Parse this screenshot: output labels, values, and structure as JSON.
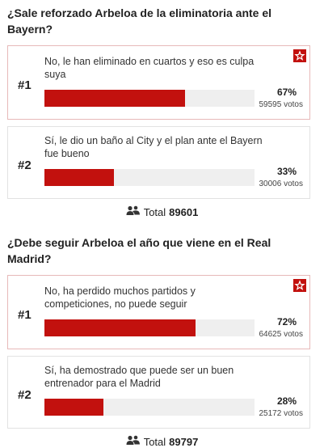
{
  "polls": [
    {
      "question": "¿Sale reforzado Arbeloa de la eliminatoria ante el Bayern?",
      "options": [
        {
          "rank": "#1",
          "text": "No, le han eliminado en cuartos y eso es culpa suya",
          "percent": 67,
          "percent_label": "67%",
          "votes": "59595 votos"
        },
        {
          "rank": "#2",
          "text": "Sí, le dio un baño al City y el plan ante el Bayern fue bueno",
          "percent": 33,
          "percent_label": "33%",
          "votes": "30006 votos"
        }
      ],
      "total_label": "Total",
      "total": 89601
    },
    {
      "question": "¿Debe seguir Arbeloa el año que viene en el Real Madrid?",
      "options": [
        {
          "rank": "#1",
          "text": "No, ha perdido muchos partidos y competiciones, no puede seguir",
          "percent": 72,
          "percent_label": "72%",
          "votes": "64625 votos"
        },
        {
          "rank": "#2",
          "text": "Sí, ha demostrado que puede ser un buen entrenador para el Madrid",
          "percent": 28,
          "percent_label": "28%",
          "votes": "25172 votos"
        }
      ],
      "total_label": "Total",
      "total": 89797
    }
  ]
}
